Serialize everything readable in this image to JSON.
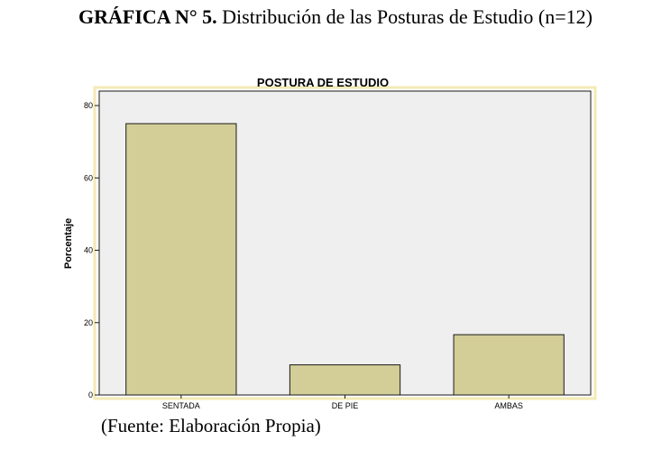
{
  "heading": {
    "label": "GRÁFICA N° 5.",
    "text": " Distribución de las Posturas de Estudio (n=12)"
  },
  "chart_data": {
    "type": "bar",
    "title": "POSTURA DE ESTUDIO",
    "xlabel": "",
    "ylabel": "Porcentaje",
    "categories": [
      "SENTADA",
      "DE PIE",
      "AMBAS"
    ],
    "values": [
      75,
      8.33,
      16.67
    ],
    "ylim": [
      0,
      84
    ],
    "yticks": [
      0,
      20,
      40,
      60,
      80
    ],
    "grid": false,
    "legend": "none",
    "colors": {
      "bar_fill": "#d3cd98",
      "bar_stroke": "#1a1a1a",
      "plot_background": "#efefef",
      "frame_border": "#f3eab5"
    }
  },
  "source_note": "(Fuente: Elaboración Propia)"
}
